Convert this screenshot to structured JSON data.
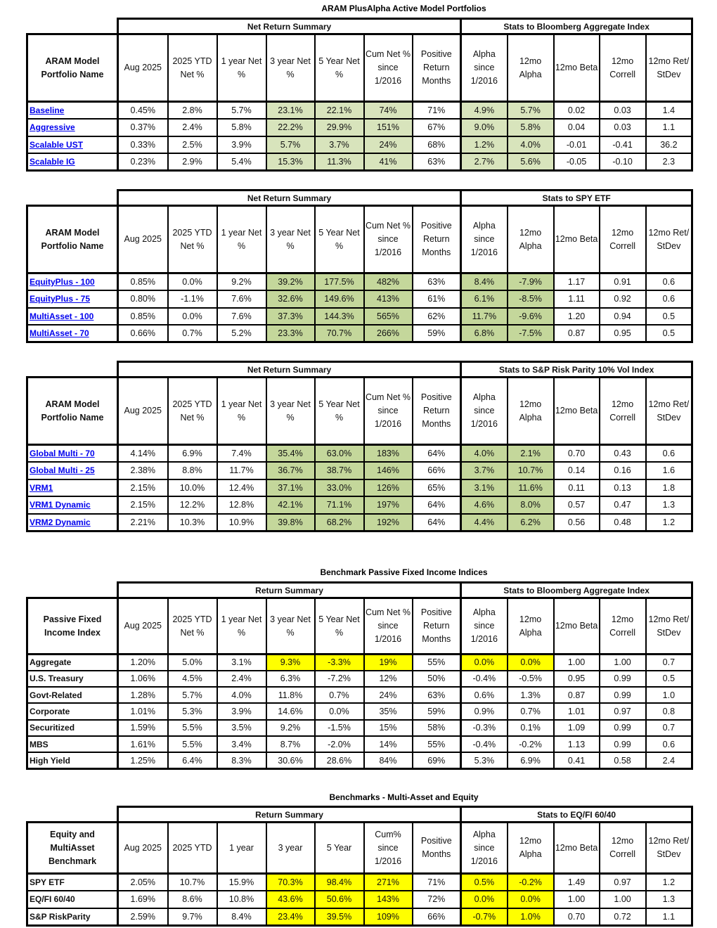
{
  "colors": {
    "light_green": "#d8e4bc",
    "green": "#c4d79b",
    "yellow": "#ffff00",
    "link": "#0000ee"
  },
  "header_cols_standard": [
    "Aug 2025",
    "2025 YTD Net %",
    "1 year Net %",
    "3 year Net %",
    "5 Year Net %",
    "Cum Net % since 1/2016",
    "Positive Return Months",
    "Alpha since 1/2016",
    "12mo Alpha",
    "12mo Beta",
    "12mo Correll",
    "12mo Ret/ StDev"
  ],
  "tables": [
    {
      "title": "ARAM PlusAlpha Active Model Portfolios",
      "group1": "Net Return Summary",
      "group2": "Stats to Bloomberg Aggregate Index",
      "first_header": "ARAM Model Portfolio Name",
      "links": true,
      "highlight": "light_green",
      "highlight_cols": [
        3,
        4,
        5,
        7,
        8
      ],
      "highlight_rows": "all",
      "columns": [
        "Aug 2025",
        "2025 YTD Net %",
        "1 year Net %",
        "3 year Net %",
        "5 Year Net %",
        "Cum Net % since 1/2016",
        "Positive Return Months",
        "Alpha since 1/2016",
        "12mo Alpha",
        "12mo Beta",
        "12mo Correll",
        "12mo Ret/ StDev"
      ],
      "rows": [
        [
          "Baseline",
          "0.45%",
          "2.8%",
          "5.7%",
          "23.1%",
          "22.1%",
          "74%",
          "71%",
          "4.9%",
          "5.7%",
          "0.02",
          "0.03",
          "1.4"
        ],
        [
          "Aggressive",
          "0.37%",
          "2.4%",
          "5.8%",
          "22.2%",
          "29.9%",
          "151%",
          "67%",
          "9.0%",
          "5.8%",
          "0.04",
          "0.03",
          "1.1"
        ],
        [
          "Scalable UST",
          "0.33%",
          "2.5%",
          "3.9%",
          "5.7%",
          "3.7%",
          "24%",
          "68%",
          "1.2%",
          "4.0%",
          "-0.01",
          "-0.41",
          "36.2"
        ],
        [
          "Scalable IG",
          "0.23%",
          "2.9%",
          "5.4%",
          "15.3%",
          "11.3%",
          "41%",
          "63%",
          "2.7%",
          "5.6%",
          "-0.05",
          "-0.10",
          "2.3"
        ]
      ]
    },
    {
      "title": "",
      "group1": "Net Return Summary",
      "group2": "Stats to SPY ETF",
      "first_header": "ARAM Model Portfolio Name",
      "links": true,
      "highlight": "green",
      "highlight_cols": [
        3,
        4,
        5,
        7,
        8
      ],
      "highlight_rows": "all",
      "columns": [
        "Aug 2025",
        "2025 YTD Net %",
        "1 year Net %",
        "3 year Net %",
        "5 Year Net %",
        "Cum Net % since 1/2016",
        "Positive Return Months",
        "Alpha since 1/2016",
        "12mo Alpha",
        "12mo Beta",
        "12mo Correll",
        "12mo Ret/ StDev"
      ],
      "rows": [
        [
          "EquityPlus - 100",
          "0.85%",
          "0.0%",
          "9.2%",
          "39.2%",
          "177.5%",
          "482%",
          "63%",
          "8.4%",
          "-7.9%",
          "1.17",
          "0.91",
          "0.6"
        ],
        [
          "EquityPlus - 75",
          "0.80%",
          "-1.1%",
          "7.6%",
          "32.6%",
          "149.6%",
          "413%",
          "61%",
          "6.1%",
          "-8.5%",
          "1.11",
          "0.92",
          "0.6"
        ],
        [
          "MultiAsset - 100",
          "0.85%",
          "0.0%",
          "7.6%",
          "37.3%",
          "144.3%",
          "565%",
          "62%",
          "11.7%",
          "-9.6%",
          "1.20",
          "0.94",
          "0.5"
        ],
        [
          "MultiAsset - 70",
          "0.66%",
          "0.7%",
          "5.2%",
          "23.3%",
          "70.7%",
          "266%",
          "59%",
          "6.8%",
          "-7.5%",
          "0.87",
          "0.95",
          "0.5"
        ]
      ]
    },
    {
      "title": "",
      "group1": "Net Return Summary",
      "group2": "Stats to S&P Risk Parity 10% Vol Index",
      "first_header": "ARAM Model Portfolio Name",
      "links": true,
      "highlight": "green",
      "highlight_cols": [
        3,
        4,
        5,
        7,
        8
      ],
      "highlight_rows": "all",
      "columns": [
        "Aug 2025",
        "2025 YTD Net %",
        "1 year Net %",
        "3 year Net %",
        "5 Year Net %",
        "Cum Net % since 1/2016",
        "Positive Return Months",
        "Alpha since 1/2016",
        "12mo Alpha",
        "12mo Beta",
        "12mo Correll",
        "12mo Ret/ StDev"
      ],
      "rows": [
        [
          "Global Multi - 70",
          "4.14%",
          "6.9%",
          "7.4%",
          "35.4%",
          "63.0%",
          "183%",
          "64%",
          "4.0%",
          "2.1%",
          "0.70",
          "0.43",
          "0.6"
        ],
        [
          "Global Multi - 25",
          "2.38%",
          "8.8%",
          "11.7%",
          "36.7%",
          "38.7%",
          "146%",
          "66%",
          "3.7%",
          "10.7%",
          "0.14",
          "0.16",
          "1.6"
        ],
        [
          "VRM1",
          "2.15%",
          "10.0%",
          "12.4%",
          "37.1%",
          "33.0%",
          "126%",
          "65%",
          "3.1%",
          "11.6%",
          "0.11",
          "0.13",
          "1.8"
        ],
        [
          "VRM1 Dynamic",
          "2.15%",
          "12.2%",
          "12.8%",
          "42.1%",
          "71.1%",
          "197%",
          "64%",
          "4.6%",
          "8.0%",
          "0.57",
          "0.47",
          "1.3"
        ],
        [
          "VRM2 Dynamic",
          "2.21%",
          "10.3%",
          "10.9%",
          "39.8%",
          "68.2%",
          "192%",
          "64%",
          "4.4%",
          "6.2%",
          "0.56",
          "0.48",
          "1.2"
        ]
      ]
    },
    {
      "title": "Benchmark Passive Fixed Income Indices",
      "group1": "Return Summary",
      "group2": "Stats to Bloomberg Aggregate Index",
      "first_header": "Passive Fixed Income Index",
      "links": false,
      "highlight": "yellow",
      "highlight_cols": [
        3,
        4,
        5,
        7,
        8
      ],
      "highlight_rows": [
        0
      ],
      "columns": [
        "Aug 2025",
        "2025 YTD Net %",
        "1 year Net %",
        "3 year Net %",
        "5 Year Net %",
        "Cum Net % since 1/2016",
        "Positive Return Months",
        "Alpha since 1/2016",
        "12mo Alpha",
        "12mo Beta",
        "12mo Correll",
        "12mo Ret/ StDev"
      ],
      "rows": [
        [
          "Aggregate",
          "1.20%",
          "5.0%",
          "3.1%",
          "9.3%",
          "-3.3%",
          "19%",
          "55%",
          "0.0%",
          "0.0%",
          "1.00",
          "1.00",
          "0.7"
        ],
        [
          "U.S. Treasury",
          "1.06%",
          "4.5%",
          "2.4%",
          "6.3%",
          "-7.2%",
          "12%",
          "50%",
          "-0.4%",
          "-0.5%",
          "0.95",
          "0.99",
          "0.5"
        ],
        [
          "Govt-Related",
          "1.28%",
          "5.7%",
          "4.0%",
          "11.8%",
          "0.7%",
          "24%",
          "63%",
          "0.6%",
          "1.3%",
          "0.87",
          "0.99",
          "1.0"
        ],
        [
          "Corporate",
          "1.01%",
          "5.3%",
          "3.9%",
          "14.6%",
          "0.0%",
          "35%",
          "59%",
          "0.9%",
          "0.7%",
          "1.01",
          "0.97",
          "0.8"
        ],
        [
          "Securitized",
          "1.59%",
          "5.5%",
          "3.5%",
          "9.2%",
          "-1.5%",
          "15%",
          "58%",
          "-0.3%",
          "0.1%",
          "1.09",
          "0.99",
          "0.7"
        ],
        [
          "MBS",
          "1.61%",
          "5.5%",
          "3.4%",
          "8.7%",
          "-2.0%",
          "14%",
          "55%",
          "-0.4%",
          "-0.2%",
          "1.13",
          "0.99",
          "0.6"
        ],
        [
          "High Yield",
          "1.25%",
          "6.4%",
          "8.3%",
          "30.6%",
          "28.6%",
          "84%",
          "69%",
          "5.3%",
          "6.9%",
          "0.41",
          "0.58",
          "2.4"
        ]
      ]
    },
    {
      "title": "Benchmarks - Multi-Asset and Equity",
      "group1": "Return Summary",
      "group2": "Stats to EQ/FI 60/40",
      "first_header": "Equity and MultiAsset Benchmark",
      "links": false,
      "highlight": "yellow",
      "highlight_cols": [
        3,
        4,
        5,
        7,
        8
      ],
      "highlight_rows": "all",
      "columns": [
        "Aug 2025",
        "2025 YTD",
        "1 year",
        "3 year",
        "5 Year",
        "Cum% since 1/2016",
        "Positive Months",
        "Alpha since 1/2016",
        "12mo Alpha",
        "12mo Beta",
        "12mo Correll",
        "12mo Ret/ StDev"
      ],
      "rows": [
        [
          "SPY ETF",
          "2.05%",
          "10.7%",
          "15.9%",
          "70.3%",
          "98.4%",
          "271%",
          "71%",
          "0.5%",
          "-0.2%",
          "1.49",
          "0.97",
          "1.2"
        ],
        [
          "EQ/FI 60/40",
          "1.69%",
          "8.6%",
          "10.8%",
          "43.6%",
          "50.6%",
          "143%",
          "72%",
          "0.0%",
          "0.0%",
          "1.00",
          "1.00",
          "1.3"
        ],
        [
          "S&P RiskParity",
          "2.59%",
          "9.7%",
          "8.4%",
          "23.4%",
          "39.5%",
          "109%",
          "66%",
          "-0.7%",
          "1.0%",
          "0.70",
          "0.72",
          "1.1"
        ]
      ]
    }
  ]
}
